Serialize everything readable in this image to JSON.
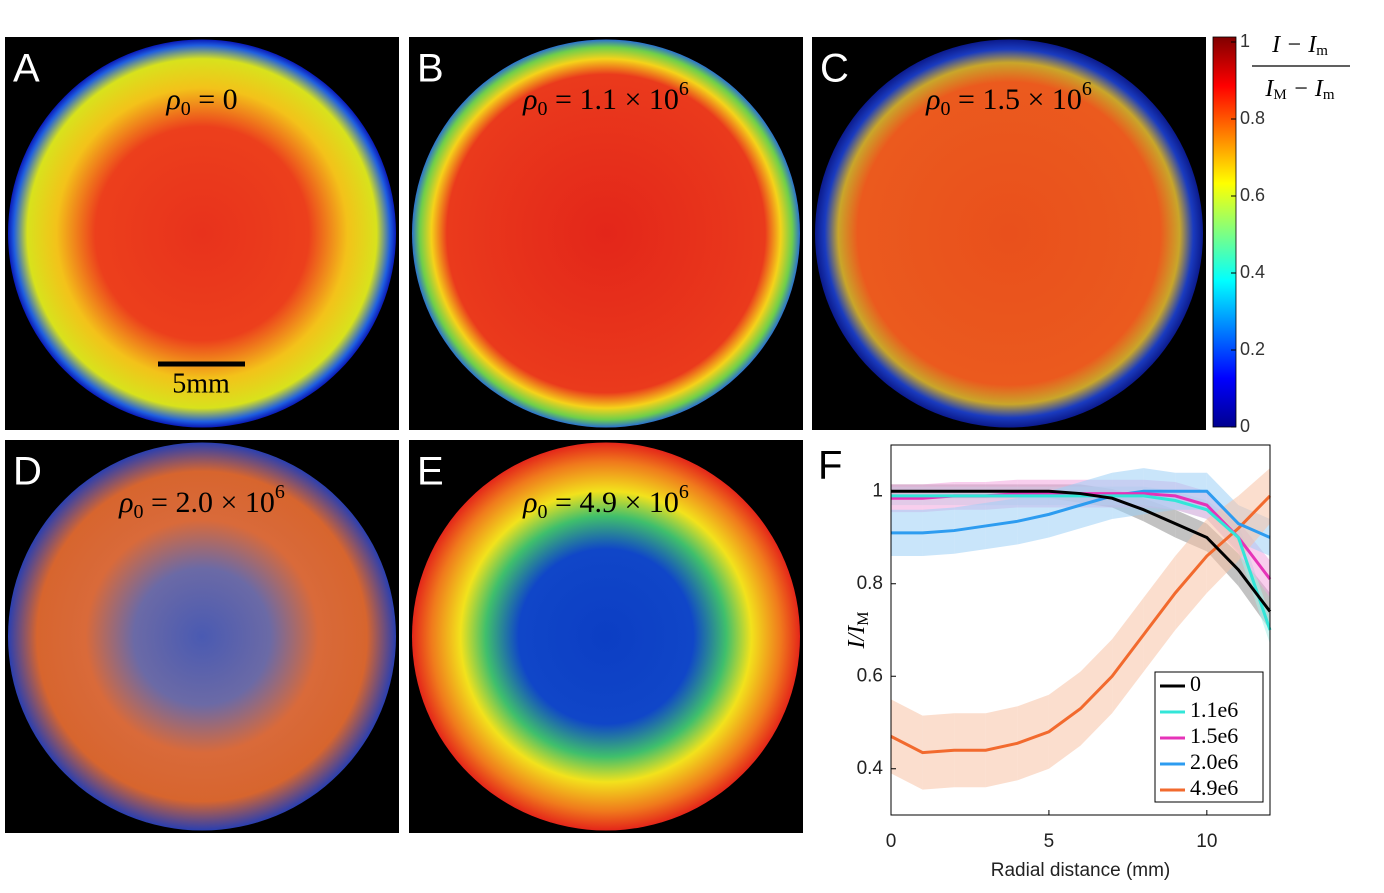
{
  "panels": [
    {
      "letter": "A",
      "label": {
        "symbol": "ρ",
        "sub": "0",
        "rest": " = 0"
      }
    },
    {
      "letter": "B",
      "label": {
        "symbol": "ρ",
        "sub": "0",
        "rest": " = 1.1 × 10",
        "sup": "6"
      }
    },
    {
      "letter": "C",
      "label": {
        "symbol": "ρ",
        "sub": "0",
        "rest": " = 1.5 × 10",
        "sup": "6"
      }
    },
    {
      "letter": "D",
      "label": {
        "symbol": "ρ",
        "sub": "0",
        "rest": " = 2.0 × 10",
        "sup": "6"
      }
    },
    {
      "letter": "E",
      "label": {
        "symbol": "ρ",
        "sub": "0",
        "rest": " = 4.9 × 10",
        "sup": "6"
      }
    }
  ],
  "scale_bar": "5mm",
  "colorbar": {
    "ylim": [
      0,
      1
    ],
    "yticks": [
      0,
      0.2,
      0.4,
      0.6,
      0.8,
      1
    ],
    "label": {
      "num": "I − I",
      "num_sub": "m",
      "den_a": "I",
      "den_a_sub": "M",
      "den_b": " − I",
      "den_b_sub": "m"
    }
  },
  "chart_data": {
    "type": "line",
    "panel_letter": "F",
    "x_label": "Radial distance (mm)",
    "y_label": {
      "main": "I/I",
      "sub": "M"
    },
    "x": [
      0,
      1,
      2,
      3,
      4,
      5,
      6,
      7,
      8,
      9,
      10,
      11,
      12
    ],
    "xlim": [
      0,
      12
    ],
    "xticks": [
      0,
      5,
      10
    ],
    "ylim": [
      0.3,
      1.1
    ],
    "yticks": [
      0.4,
      0.6,
      0.8,
      1
    ],
    "series": [
      {
        "name": "0",
        "color": "#000000",
        "band_color": "#909090",
        "values": [
          1,
          1,
          1,
          1,
          1,
          1,
          0.995,
          0.985,
          0.96,
          0.93,
          0.9,
          0.83,
          0.74
        ],
        "errors": [
          0.015,
          0.015,
          0.015,
          0.015,
          0.015,
          0.015,
          0.02,
          0.02,
          0.025,
          0.03,
          0.03,
          0.035,
          0.04
        ]
      },
      {
        "name": "1.1e6",
        "color": "#33e6d8",
        "band_color": "#a8f0ea",
        "values": [
          0.99,
          0.99,
          0.99,
          0.99,
          0.99,
          0.99,
          0.99,
          0.99,
          0.99,
          0.98,
          0.96,
          0.9,
          0.7
        ],
        "errors": [
          0.02,
          0.02,
          0.02,
          0.02,
          0.02,
          0.02,
          0.02,
          0.02,
          0.02,
          0.02,
          0.02,
          0.03,
          0.03
        ]
      },
      {
        "name": "1.5e6",
        "color": "#e633b8",
        "band_color": "#f2a6df",
        "values": [
          0.985,
          0.985,
          0.99,
          0.99,
          0.995,
          0.995,
          0.995,
          0.995,
          0.995,
          0.99,
          0.97,
          0.9,
          0.81
        ],
        "errors": [
          0.03,
          0.03,
          0.03,
          0.03,
          0.03,
          0.03,
          0.03,
          0.03,
          0.03,
          0.03,
          0.03,
          0.035,
          0.04
        ]
      },
      {
        "name": "2.0e6",
        "color": "#2d9cf0",
        "band_color": "#9dd0f6",
        "values": [
          0.91,
          0.91,
          0.915,
          0.925,
          0.935,
          0.95,
          0.97,
          0.99,
          1,
          1,
          1,
          0.93,
          0.9
        ],
        "errors": [
          0.05,
          0.05,
          0.05,
          0.05,
          0.05,
          0.05,
          0.05,
          0.05,
          0.05,
          0.04,
          0.04,
          0.04,
          0.04
        ]
      },
      {
        "name": "4.9e6",
        "color": "#f26a2e",
        "band_color": "#f8c3a6",
        "values": [
          0.47,
          0.435,
          0.44,
          0.44,
          0.455,
          0.48,
          0.53,
          0.6,
          0.69,
          0.78,
          0.86,
          0.92,
          0.99
        ],
        "errors": [
          0.08,
          0.08,
          0.08,
          0.08,
          0.08,
          0.08,
          0.08,
          0.08,
          0.08,
          0.08,
          0.08,
          0.07,
          0.06
        ]
      }
    ]
  }
}
